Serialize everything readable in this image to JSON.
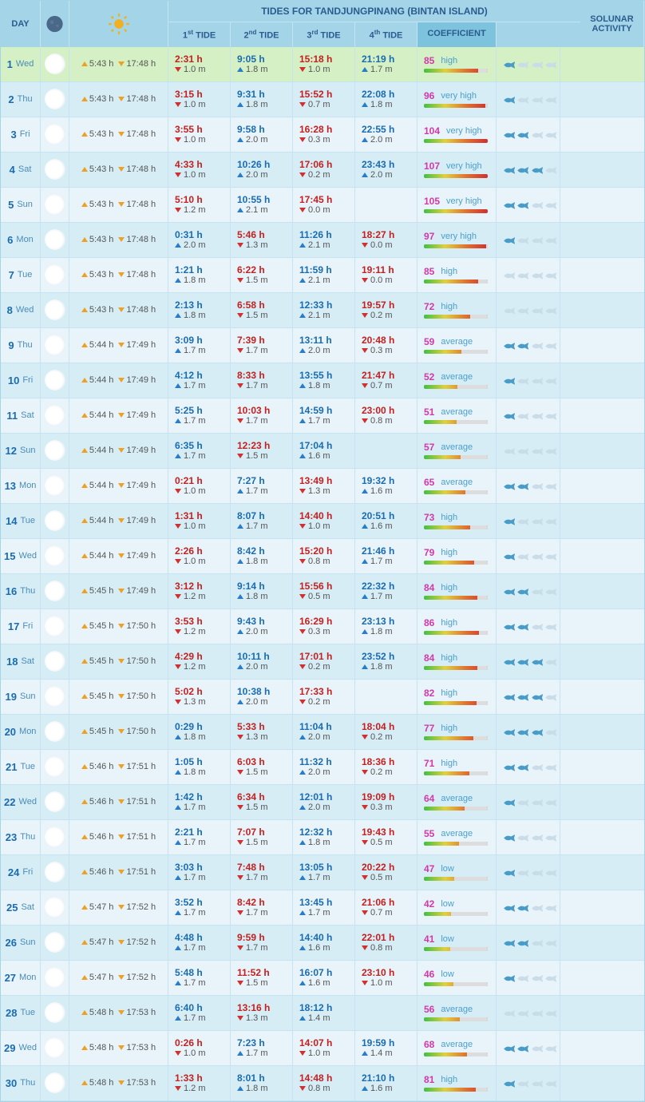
{
  "title": "TIDES FOR TANDJUNGPINANG (BINTAN ISLAND)",
  "headers": {
    "day": "DAY",
    "tide1": "1",
    "tide1_sup": "st",
    "tide2": "2",
    "tide2_sup": "nd",
    "tide3": "3",
    "tide3_sup": "rd",
    "tide4": "4",
    "tide4_sup": "th",
    "tide_word": " TIDE",
    "coefficient": "COEFFICIENT",
    "solunar": "SOLUNAR ACTIVITY"
  },
  "colors": {
    "header_bg": "#a3d4e8",
    "row_even": "#d6edf5",
    "row_odd": "#e8f4f9",
    "highlight": "#d4f0c4",
    "low_tide": "#c42020",
    "high_tide": "#1a6bb0",
    "coef_num": "#d438a8",
    "coef_label": "#4aa0d0",
    "fish_on": "#4a9cc8",
    "fish_off": "#c8dde8"
  },
  "rows": [
    {
      "num": "1",
      "day": "Wed",
      "highlight": true,
      "sunrise": "5:43 h",
      "sunset": "17:48 h",
      "tides": [
        {
          "t": "2:31 h",
          "h": "1.0 m",
          "d": "low"
        },
        {
          "t": "9:05 h",
          "h": "1.8 m",
          "d": "high"
        },
        {
          "t": "15:18 h",
          "h": "1.0 m",
          "d": "low"
        },
        {
          "t": "21:19 h",
          "h": "1.7 m",
          "d": "high"
        }
      ],
      "coef": 85,
      "coef_label": "high",
      "fish": 1,
      "moon": 0
    },
    {
      "num": "2",
      "day": "Thu",
      "sunrise": "5:43 h",
      "sunset": "17:48 h",
      "tides": [
        {
          "t": "3:15 h",
          "h": "1.0 m",
          "d": "low"
        },
        {
          "t": "9:31 h",
          "h": "1.8 m",
          "d": "high"
        },
        {
          "t": "15:52 h",
          "h": "0.7 m",
          "d": "low"
        },
        {
          "t": "22:08 h",
          "h": "1.8 m",
          "d": "high"
        }
      ],
      "coef": 96,
      "coef_label": "very high",
      "fish": 1,
      "moon": 2
    },
    {
      "num": "3",
      "day": "Fri",
      "sunrise": "5:43 h",
      "sunset": "17:48 h",
      "tides": [
        {
          "t": "3:55 h",
          "h": "1.0 m",
          "d": "low"
        },
        {
          "t": "9:58 h",
          "h": "2.0 m",
          "d": "high"
        },
        {
          "t": "16:28 h",
          "h": "0.3 m",
          "d": "low"
        },
        {
          "t": "22:55 h",
          "h": "2.0 m",
          "d": "high"
        }
      ],
      "coef": 104,
      "coef_label": "very high",
      "fish": 2,
      "moon": 4
    },
    {
      "num": "4",
      "day": "Sat",
      "sunrise": "5:43 h",
      "sunset": "17:48 h",
      "tides": [
        {
          "t": "4:33 h",
          "h": "1.0 m",
          "d": "low"
        },
        {
          "t": "10:26 h",
          "h": "2.0 m",
          "d": "high"
        },
        {
          "t": "17:06 h",
          "h": "0.2 m",
          "d": "low"
        },
        {
          "t": "23:43 h",
          "h": "2.0 m",
          "d": "high"
        }
      ],
      "coef": 107,
      "coef_label": "very high",
      "fish": 3,
      "moon": 6
    },
    {
      "num": "5",
      "day": "Sun",
      "sunrise": "5:43 h",
      "sunset": "17:48 h",
      "tides": [
        {
          "t": "5:10 h",
          "h": "1.2 m",
          "d": "low"
        },
        {
          "t": "10:55 h",
          "h": "2.1 m",
          "d": "high"
        },
        {
          "t": "17:45 h",
          "h": "0.0 m",
          "d": "low"
        },
        null
      ],
      "coef": 105,
      "coef_label": "very high",
      "fish": 2,
      "moon": 8
    },
    {
      "num": "6",
      "day": "Mon",
      "sunrise": "5:43 h",
      "sunset": "17:48 h",
      "tides": [
        {
          "t": "0:31 h",
          "h": "2.0 m",
          "d": "high"
        },
        {
          "t": "5:46 h",
          "h": "1.3 m",
          "d": "low"
        },
        {
          "t": "11:26 h",
          "h": "2.1 m",
          "d": "high"
        },
        {
          "t": "18:27 h",
          "h": "0.0 m",
          "d": "low"
        }
      ],
      "coef": 97,
      "coef_label": "very high",
      "fish": 1,
      "moon": 10
    },
    {
      "num": "7",
      "day": "Tue",
      "sunrise": "5:43 h",
      "sunset": "17:48 h",
      "tides": [
        {
          "t": "1:21 h",
          "h": "1.8 m",
          "d": "high"
        },
        {
          "t": "6:22 h",
          "h": "1.5 m",
          "d": "low"
        },
        {
          "t": "11:59 h",
          "h": "2.1 m",
          "d": "high"
        },
        {
          "t": "19:11 h",
          "h": "0.0 m",
          "d": "low"
        }
      ],
      "coef": 85,
      "coef_label": "high",
      "fish": 0,
      "moon": 14
    },
    {
      "num": "8",
      "day": "Wed",
      "sunrise": "5:43 h",
      "sunset": "17:48 h",
      "tides": [
        {
          "t": "2:13 h",
          "h": "1.8 m",
          "d": "high"
        },
        {
          "t": "6:58 h",
          "h": "1.5 m",
          "d": "low"
        },
        {
          "t": "12:33 h",
          "h": "2.1 m",
          "d": "high"
        },
        {
          "t": "19:57 h",
          "h": "0.2 m",
          "d": "low"
        }
      ],
      "coef": 72,
      "coef_label": "high",
      "fish": 0,
      "moon": 18
    },
    {
      "num": "9",
      "day": "Thu",
      "sunrise": "5:44 h",
      "sunset": "17:49 h",
      "tides": [
        {
          "t": "3:09 h",
          "h": "1.7 m",
          "d": "high"
        },
        {
          "t": "7:39 h",
          "h": "1.7 m",
          "d": "low"
        },
        {
          "t": "13:11 h",
          "h": "2.0 m",
          "d": "high"
        },
        {
          "t": "20:48 h",
          "h": "0.3 m",
          "d": "low"
        }
      ],
      "coef": 59,
      "coef_label": "average",
      "fish": 2,
      "moon": 24
    },
    {
      "num": "10",
      "day": "Fri",
      "sunrise": "5:44 h",
      "sunset": "17:49 h",
      "tides": [
        {
          "t": "4:12 h",
          "h": "1.7 m",
          "d": "high"
        },
        {
          "t": "8:33 h",
          "h": "1.7 m",
          "d": "low"
        },
        {
          "t": "13:55 h",
          "h": "1.8 m",
          "d": "high"
        },
        {
          "t": "21:47 h",
          "h": "0.7 m",
          "d": "low"
        }
      ],
      "coef": 52,
      "coef_label": "average",
      "fish": 1,
      "moon": 30
    },
    {
      "num": "11",
      "day": "Sat",
      "sunrise": "5:44 h",
      "sunset": "17:49 h",
      "tides": [
        {
          "t": "5:25 h",
          "h": "1.7 m",
          "d": "high"
        },
        {
          "t": "10:03 h",
          "h": "1.7 m",
          "d": "low"
        },
        {
          "t": "14:59 h",
          "h": "1.7 m",
          "d": "high"
        },
        {
          "t": "23:00 h",
          "h": "0.8 m",
          "d": "low"
        }
      ],
      "coef": 51,
      "coef_label": "average",
      "fish": 1,
      "moon": 36
    },
    {
      "num": "12",
      "day": "Sun",
      "sunrise": "5:44 h",
      "sunset": "17:49 h",
      "tides": [
        {
          "t": "6:35 h",
          "h": "1.7 m",
          "d": "high"
        },
        {
          "t": "12:23 h",
          "h": "1.5 m",
          "d": "low"
        },
        {
          "t": "17:04 h",
          "h": "1.6 m",
          "d": "high"
        },
        null
      ],
      "coef": 57,
      "coef_label": "average",
      "fish": 0,
      "moon": 42
    },
    {
      "num": "13",
      "day": "Mon",
      "sunrise": "5:44 h",
      "sunset": "17:49 h",
      "tides": [
        {
          "t": "0:21 h",
          "h": "1.0 m",
          "d": "low"
        },
        {
          "t": "7:27 h",
          "h": "1.7 m",
          "d": "high"
        },
        {
          "t": "13:49 h",
          "h": "1.3 m",
          "d": "low"
        },
        {
          "t": "19:32 h",
          "h": "1.6 m",
          "d": "high"
        }
      ],
      "coef": 65,
      "coef_label": "average",
      "fish": 2,
      "moon": 48
    },
    {
      "num": "14",
      "day": "Tue",
      "sunrise": "5:44 h",
      "sunset": "17:49 h",
      "tides": [
        {
          "t": "1:31 h",
          "h": "1.0 m",
          "d": "low"
        },
        {
          "t": "8:07 h",
          "h": "1.7 m",
          "d": "high"
        },
        {
          "t": "14:40 h",
          "h": "1.0 m",
          "d": "low"
        },
        {
          "t": "20:51 h",
          "h": "1.6 m",
          "d": "high"
        }
      ],
      "coef": 73,
      "coef_label": "high",
      "fish": 1,
      "moon": 50
    },
    {
      "num": "15",
      "day": "Wed",
      "sunrise": "5:44 h",
      "sunset": "17:49 h",
      "tides": [
        {
          "t": "2:26 h",
          "h": "1.0 m",
          "d": "low"
        },
        {
          "t": "8:42 h",
          "h": "1.8 m",
          "d": "high"
        },
        {
          "t": "15:20 h",
          "h": "0.8 m",
          "d": "low"
        },
        {
          "t": "21:46 h",
          "h": "1.7 m",
          "d": "high"
        }
      ],
      "coef": 79,
      "coef_label": "high",
      "fish": 1,
      "moon": 50
    },
    {
      "num": "16",
      "day": "Thu",
      "sunrise": "5:45 h",
      "sunset": "17:49 h",
      "tides": [
        {
          "t": "3:12 h",
          "h": "1.2 m",
          "d": "low"
        },
        {
          "t": "9:14 h",
          "h": "1.8 m",
          "d": "high"
        },
        {
          "t": "15:56 h",
          "h": "0.5 m",
          "d": "low"
        },
        {
          "t": "22:32 h",
          "h": "1.7 m",
          "d": "high"
        }
      ],
      "coef": 84,
      "coef_label": "high",
      "fish": 2,
      "moon": 50
    },
    {
      "num": "17",
      "day": "Fri",
      "sunrise": "5:45 h",
      "sunset": "17:50 h",
      "tides": [
        {
          "t": "3:53 h",
          "h": "1.2 m",
          "d": "low"
        },
        {
          "t": "9:43 h",
          "h": "2.0 m",
          "d": "high"
        },
        {
          "t": "16:29 h",
          "h": "0.3 m",
          "d": "low"
        },
        {
          "t": "23:13 h",
          "h": "1.8 m",
          "d": "high"
        }
      ],
      "coef": 86,
      "coef_label": "high",
      "fish": 2,
      "moon": 50
    },
    {
      "num": "18",
      "day": "Sat",
      "sunrise": "5:45 h",
      "sunset": "17:50 h",
      "tides": [
        {
          "t": "4:29 h",
          "h": "1.2 m",
          "d": "low"
        },
        {
          "t": "10:11 h",
          "h": "2.0 m",
          "d": "high"
        },
        {
          "t": "17:01 h",
          "h": "0.2 m",
          "d": "low"
        },
        {
          "t": "23:52 h",
          "h": "1.8 m",
          "d": "high"
        }
      ],
      "coef": 84,
      "coef_label": "high",
      "fish": 3,
      "moon": 50
    },
    {
      "num": "19",
      "day": "Sun",
      "sunrise": "5:45 h",
      "sunset": "17:50 h",
      "tides": [
        {
          "t": "5:02 h",
          "h": "1.3 m",
          "d": "low"
        },
        {
          "t": "10:38 h",
          "h": "2.0 m",
          "d": "high"
        },
        {
          "t": "17:33 h",
          "h": "0.2 m",
          "d": "low"
        },
        null
      ],
      "coef": 82,
      "coef_label": "high",
      "fish": 3,
      "moon": 50
    },
    {
      "num": "20",
      "day": "Mon",
      "sunrise": "5:45 h",
      "sunset": "17:50 h",
      "tides": [
        {
          "t": "0:29 h",
          "h": "1.8 m",
          "d": "high"
        },
        {
          "t": "5:33 h",
          "h": "1.3 m",
          "d": "low"
        },
        {
          "t": "11:04 h",
          "h": "2.0 m",
          "d": "high"
        },
        {
          "t": "18:04 h",
          "h": "0.2 m",
          "d": "low"
        }
      ],
      "coef": 77,
      "coef_label": "high",
      "fish": 3,
      "moon": 55
    },
    {
      "num": "21",
      "day": "Tue",
      "sunrise": "5:46 h",
      "sunset": "17:51 h",
      "tides": [
        {
          "t": "1:05 h",
          "h": "1.8 m",
          "d": "high"
        },
        {
          "t": "6:03 h",
          "h": "1.5 m",
          "d": "low"
        },
        {
          "t": "11:32 h",
          "h": "2.0 m",
          "d": "high"
        },
        {
          "t": "18:36 h",
          "h": "0.2 m",
          "d": "low"
        }
      ],
      "coef": 71,
      "coef_label": "high",
      "fish": 2,
      "moon": 60
    },
    {
      "num": "22",
      "day": "Wed",
      "sunrise": "5:46 h",
      "sunset": "17:51 h",
      "tides": [
        {
          "t": "1:42 h",
          "h": "1.7 m",
          "d": "high"
        },
        {
          "t": "6:34 h",
          "h": "1.5 m",
          "d": "low"
        },
        {
          "t": "12:01 h",
          "h": "2.0 m",
          "d": "high"
        },
        {
          "t": "19:09 h",
          "h": "0.3 m",
          "d": "low"
        }
      ],
      "coef": 64,
      "coef_label": "average",
      "fish": 1,
      "moon": 65
    },
    {
      "num": "23",
      "day": "Thu",
      "sunrise": "5:46 h",
      "sunset": "17:51 h",
      "tides": [
        {
          "t": "2:21 h",
          "h": "1.7 m",
          "d": "high"
        },
        {
          "t": "7:07 h",
          "h": "1.5 m",
          "d": "low"
        },
        {
          "t": "12:32 h",
          "h": "1.8 m",
          "d": "high"
        },
        {
          "t": "19:43 h",
          "h": "0.5 m",
          "d": "low"
        }
      ],
      "coef": 55,
      "coef_label": "average",
      "fish": 1,
      "moon": 70
    },
    {
      "num": "24",
      "day": "Fri",
      "sunrise": "5:46 h",
      "sunset": "17:51 h",
      "tides": [
        {
          "t": "3:03 h",
          "h": "1.7 m",
          "d": "high"
        },
        {
          "t": "7:48 h",
          "h": "1.7 m",
          "d": "low"
        },
        {
          "t": "13:05 h",
          "h": "1.7 m",
          "d": "high"
        },
        {
          "t": "20:22 h",
          "h": "0.5 m",
          "d": "low"
        }
      ],
      "coef": 47,
      "coef_label": "low",
      "fish": 1,
      "moon": 75
    },
    {
      "num": "25",
      "day": "Sat",
      "sunrise": "5:47 h",
      "sunset": "17:52 h",
      "tides": [
        {
          "t": "3:52 h",
          "h": "1.7 m",
          "d": "high"
        },
        {
          "t": "8:42 h",
          "h": "1.7 m",
          "d": "low"
        },
        {
          "t": "13:45 h",
          "h": "1.7 m",
          "d": "high"
        },
        {
          "t": "21:06 h",
          "h": "0.7 m",
          "d": "low"
        }
      ],
      "coef": 42,
      "coef_label": "low",
      "fish": 2,
      "moon": 80
    },
    {
      "num": "26",
      "day": "Sun",
      "sunrise": "5:47 h",
      "sunset": "17:52 h",
      "tides": [
        {
          "t": "4:48 h",
          "h": "1.7 m",
          "d": "high"
        },
        {
          "t": "9:59 h",
          "h": "1.7 m",
          "d": "low"
        },
        {
          "t": "14:40 h",
          "h": "1.6 m",
          "d": "high"
        },
        {
          "t": "22:01 h",
          "h": "0.8 m",
          "d": "low"
        }
      ],
      "coef": 41,
      "coef_label": "low",
      "fish": 2,
      "moon": 85
    },
    {
      "num": "27",
      "day": "Mon",
      "sunrise": "5:47 h",
      "sunset": "17:52 h",
      "tides": [
        {
          "t": "5:48 h",
          "h": "1.7 m",
          "d": "high"
        },
        {
          "t": "11:52 h",
          "h": "1.5 m",
          "d": "low"
        },
        {
          "t": "16:07 h",
          "h": "1.6 m",
          "d": "high"
        },
        {
          "t": "23:10 h",
          "h": "1.0 m",
          "d": "low"
        }
      ],
      "coef": 46,
      "coef_label": "low",
      "fish": 1,
      "moon": 88
    },
    {
      "num": "28",
      "day": "Tue",
      "sunrise": "5:48 h",
      "sunset": "17:53 h",
      "tides": [
        {
          "t": "6:40 h",
          "h": "1.7 m",
          "d": "high"
        },
        {
          "t": "13:16 h",
          "h": "1.3 m",
          "d": "low"
        },
        {
          "t": "18:12 h",
          "h": "1.4 m",
          "d": "high"
        },
        null
      ],
      "coef": 56,
      "coef_label": "average",
      "fish": 0,
      "moon": 92
    },
    {
      "num": "29",
      "day": "Wed",
      "sunrise": "5:48 h",
      "sunset": "17:53 h",
      "tides": [
        {
          "t": "0:26 h",
          "h": "1.0 m",
          "d": "low"
        },
        {
          "t": "7:23 h",
          "h": "1.7 m",
          "d": "high"
        },
        {
          "t": "14:07 h",
          "h": "1.0 m",
          "d": "low"
        },
        {
          "t": "19:59 h",
          "h": "1.4 m",
          "d": "high"
        }
      ],
      "coef": 68,
      "coef_label": "average",
      "fish": 2,
      "moon": 96
    },
    {
      "num": "30",
      "day": "Thu",
      "sunrise": "5:48 h",
      "sunset": "17:53 h",
      "tides": [
        {
          "t": "1:33 h",
          "h": "1.2 m",
          "d": "low"
        },
        {
          "t": "8:01 h",
          "h": "1.8 m",
          "d": "high"
        },
        {
          "t": "14:48 h",
          "h": "0.8 m",
          "d": "low"
        },
        {
          "t": "21:10 h",
          "h": "1.6 m",
          "d": "high"
        }
      ],
      "coef": 81,
      "coef_label": "high",
      "fish": 1,
      "moon": 100
    }
  ]
}
